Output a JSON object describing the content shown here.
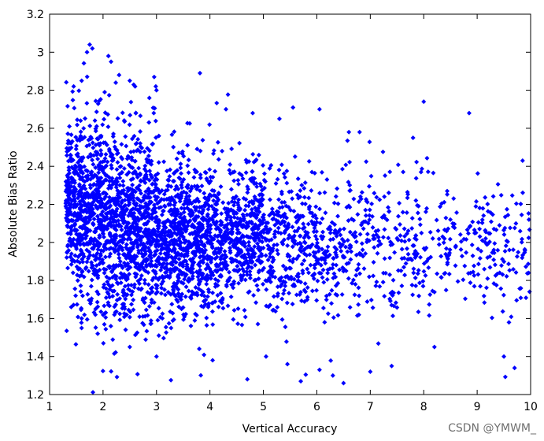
{
  "chart_data": {
    "type": "scatter",
    "title": "",
    "xlabel": "Vertical Accuracy",
    "ylabel": "Absolute Bias Ratio",
    "xlim": [
      1,
      10
    ],
    "ylim": [
      1.2,
      3.2
    ],
    "xticks": [
      1,
      2,
      3,
      4,
      5,
      6,
      7,
      8,
      9,
      10
    ],
    "yticks": [
      1.2,
      1.4,
      1.6,
      1.8,
      2,
      2.2,
      2.4,
      2.6,
      2.8,
      3,
      3.2
    ],
    "ytick_labels": [
      "1.2",
      "1.4",
      "1.6",
      "1.8",
      "2",
      "2.2",
      "2.4",
      "2.6",
      "2.8",
      "3",
      "3.2"
    ],
    "grid": false,
    "legend": "none",
    "marker_color": "#0000ff",
    "marker": "diamond",
    "density_bands": [
      {
        "x": [
          1.3,
          1.4
        ],
        "y_range": [
          1.8,
          2.7
        ],
        "density": 1.0
      },
      {
        "x": [
          1.4,
          2.0
        ],
        "y_range": [
          1.62,
          2.72
        ],
        "density": 1.0
      },
      {
        "x": [
          2.0,
          3.0
        ],
        "y_range": [
          1.52,
          2.65
        ],
        "density": 0.95
      },
      {
        "x": [
          3.0,
          4.0
        ],
        "y_range": [
          1.55,
          2.5
        ],
        "density": 0.8
      },
      {
        "x": [
          4.0,
          5.0
        ],
        "y_range": [
          1.6,
          2.45
        ],
        "density": 0.6
      },
      {
        "x": [
          5.0,
          6.0
        ],
        "y_range": [
          1.6,
          2.4
        ],
        "density": 0.35
      },
      {
        "x": [
          6.0,
          7.0
        ],
        "y_range": [
          1.55,
          2.4
        ],
        "density": 0.22
      },
      {
        "x": [
          7.0,
          8.0
        ],
        "y_range": [
          1.6,
          2.35
        ],
        "density": 0.16
      },
      {
        "x": [
          8.0,
          10.0
        ],
        "y_range": [
          1.6,
          2.35
        ],
        "density": 0.12
      }
    ],
    "outliers": [
      {
        "x": 1.75,
        "y": 3.04
      },
      {
        "x": 1.8,
        "y": 3.02
      },
      {
        "x": 1.7,
        "y": 3.0
      },
      {
        "x": 2.1,
        "y": 2.98
      },
      {
        "x": 2.15,
        "y": 2.95
      },
      {
        "x": 2.3,
        "y": 2.88
      },
      {
        "x": 2.5,
        "y": 2.85
      },
      {
        "x": 2.6,
        "y": 2.82
      },
      {
        "x": 3.0,
        "y": 2.8
      },
      {
        "x": 1.6,
        "y": 2.85
      },
      {
        "x": 1.45,
        "y": 2.82
      },
      {
        "x": 8.0,
        "y": 2.74
      },
      {
        "x": 8.85,
        "y": 2.68
      },
      {
        "x": 6.05,
        "y": 2.7
      },
      {
        "x": 5.3,
        "y": 2.65
      },
      {
        "x": 4.3,
        "y": 2.7
      },
      {
        "x": 4.8,
        "y": 2.68
      },
      {
        "x": 7.8,
        "y": 2.55
      },
      {
        "x": 6.6,
        "y": 2.58
      },
      {
        "x": 6.8,
        "y": 2.58
      },
      {
        "x": 9.85,
        "y": 2.43
      },
      {
        "x": 4.7,
        "y": 1.28
      },
      {
        "x": 5.7,
        "y": 1.27
      },
      {
        "x": 6.5,
        "y": 1.26
      },
      {
        "x": 6.3,
        "y": 1.3
      },
      {
        "x": 6.05,
        "y": 1.33
      },
      {
        "x": 7.4,
        "y": 1.35
      },
      {
        "x": 9.7,
        "y": 1.34
      },
      {
        "x": 9.5,
        "y": 1.4
      },
      {
        "x": 8.2,
        "y": 1.45
      },
      {
        "x": 3.0,
        "y": 1.4
      },
      {
        "x": 2.5,
        "y": 1.45
      },
      {
        "x": 4.05,
        "y": 1.38
      },
      {
        "x": 5.05,
        "y": 1.4
      },
      {
        "x": 5.45,
        "y": 1.36
      },
      {
        "x": 7.0,
        "y": 1.32
      },
      {
        "x": 3.8,
        "y": 1.44
      },
      {
        "x": 1.6,
        "y": 1.6
      },
      {
        "x": 1.9,
        "y": 1.52
      }
    ]
  },
  "watermark": {
    "text": "CSDN @YMWM_"
  }
}
